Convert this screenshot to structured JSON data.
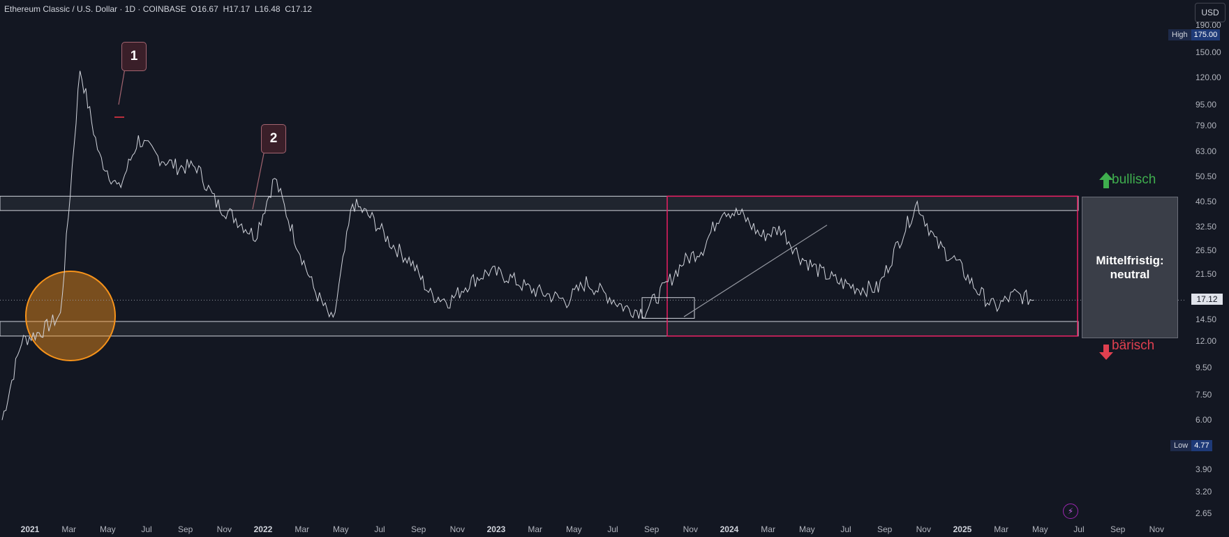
{
  "header": {
    "symbol_line": "Ethereum Classic / U.S. Dollar · 1D · COINBASE",
    "open_label": "O",
    "open": "16.67",
    "high_label": "H",
    "high": "17.17",
    "low_label": "L",
    "low": "16.48",
    "close_label": "C",
    "close": "17.12"
  },
  "currency_button": "USD",
  "y_axis": {
    "scale": "log",
    "ticks": [
      "190.00",
      "150.00",
      "120.00",
      "95.00",
      "79.00",
      "63.00",
      "50.50",
      "40.50",
      "32.50",
      "26.50",
      "21.50",
      "14.50",
      "12.00",
      "9.50",
      "7.50",
      "6.00",
      "3.90",
      "3.20",
      "2.65"
    ],
    "high_tag": {
      "label": "High",
      "value": "175.00"
    },
    "low_tag": {
      "label": "Low",
      "value": "4.77"
    },
    "current_price": "17.12"
  },
  "x_axis": {
    "ticks": [
      "2021",
      "Mar",
      "May",
      "Jul",
      "Sep",
      "Nov",
      "2022",
      "Mar",
      "May",
      "Jul",
      "Sep",
      "Nov",
      "2023",
      "Mar",
      "May",
      "Jul",
      "Sep",
      "Nov",
      "2024",
      "Mar",
      "May",
      "Jul",
      "Sep",
      "Nov",
      "2025",
      "Mar",
      "May",
      "Jul",
      "Sep",
      "Nov"
    ],
    "year_ticks": [
      "2021",
      "2022",
      "2023",
      "2024",
      "2025"
    ]
  },
  "annotations": {
    "callout_1": "1",
    "callout_2": "2",
    "bull_label": "bullisch",
    "bear_label": "bärisch",
    "verdict_line1": "Mittelfristig:",
    "verdict_line2": "neutral"
  },
  "colors": {
    "background": "#131722",
    "price_line": "#d1d4dc",
    "range_box": "#e91e63",
    "circle": "#f7931a",
    "bullish": "#3fae4e",
    "bearish": "#e04050"
  },
  "chart_data": {
    "type": "line",
    "title": "Ethereum Classic / U.S. Dollar · 1D · COINBASE",
    "xlabel": "",
    "ylabel": "",
    "ylim": [
      2.5,
      190
    ],
    "x": [
      "2021-01",
      "2021-02",
      "2021-03",
      "2021-04",
      "2021-05",
      "2021-06",
      "2021-07",
      "2021-08",
      "2021-09",
      "2021-10",
      "2021-11",
      "2021-12",
      "2022-01",
      "2022-02",
      "2022-03",
      "2022-04",
      "2022-05",
      "2022-06",
      "2022-07",
      "2022-08",
      "2022-09",
      "2022-10",
      "2022-11",
      "2022-12",
      "2023-01",
      "2023-02",
      "2023-03",
      "2023-04",
      "2023-05",
      "2023-06",
      "2023-07",
      "2023-08",
      "2023-09",
      "2023-10",
      "2023-11",
      "2023-12",
      "2024-01",
      "2024-02",
      "2024-03",
      "2024-04",
      "2024-05",
      "2024-06",
      "2024-07",
      "2024-08",
      "2024-09",
      "2024-10",
      "2024-11",
      "2024-12",
      "2025-01",
      "2025-02",
      "2025-03",
      "2025-04",
      "2025-05",
      "2025-06"
    ],
    "series": [
      {
        "values": [
          6,
          12,
          13,
          15,
          130,
          60,
          45,
          70,
          60,
          55,
          55,
          40,
          35,
          30,
          50,
          30,
          19,
          14,
          40,
          35,
          28,
          24,
          18,
          17,
          20,
          22,
          21,
          19,
          18,
          17,
          20,
          18,
          16,
          15.5,
          19,
          24,
          27,
          38,
          36,
          30,
          32,
          25,
          22,
          20,
          19,
          19,
          28,
          40,
          28,
          24,
          19,
          16,
          18,
          17.12
        ]
      }
    ],
    "levels": {
      "resistance_zone": [
        37.5,
        42.5
      ],
      "support_zone": [
        12.5,
        14.2
      ],
      "current": 17.12,
      "high": 175,
      "low": 4.77
    },
    "legend": "none",
    "grid": false
  }
}
